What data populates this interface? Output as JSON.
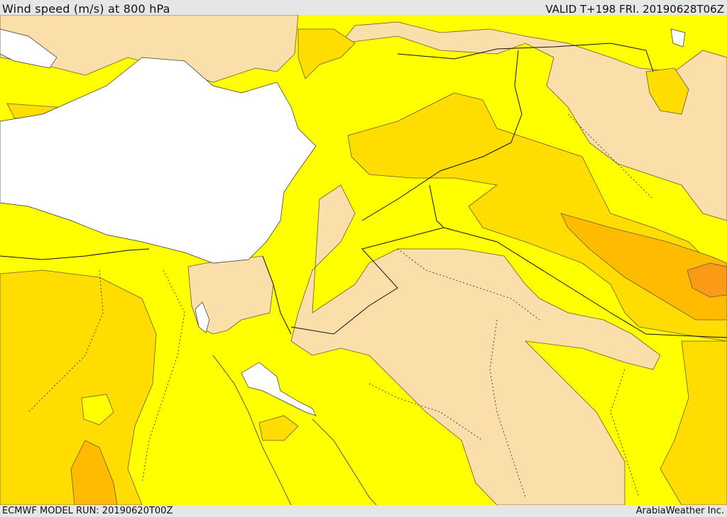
{
  "header": {
    "title": "Wind speed (m/s) at 800 hPa",
    "valid": "VALID T+198 FRI. 20190628T06Z"
  },
  "footer": {
    "model_run": "ECMWF MODEL RUN: 20190620T00Z",
    "brand": "ArabiaWeather Inc."
  },
  "legend_colors": {
    "tan": "#fbdfaa",
    "yellow": "#ffff00",
    "gold": "#ffdd00",
    "orange": "#ffbb00",
    "dark_orange": "#fa9a16",
    "sea": "#ffffff"
  }
}
